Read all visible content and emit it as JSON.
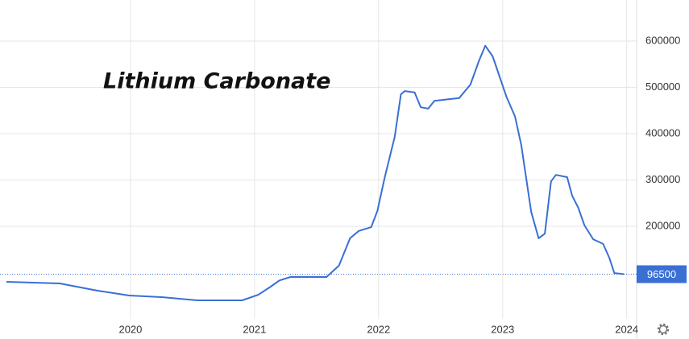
{
  "chart_data": {
    "type": "line",
    "title": "Lithium Carbonate",
    "x": [
      2019.0,
      2019.43,
      2019.73,
      2019.99,
      2020.25,
      2020.54,
      2020.9,
      2021.03,
      2021.13,
      2021.2,
      2021.29,
      2021.58,
      2021.68,
      2021.77,
      2021.84,
      2021.94,
      2021.99,
      2022.05,
      2022.13,
      2022.18,
      2022.21,
      2022.29,
      2022.34,
      2022.4,
      2022.45,
      2022.52,
      2022.65,
      2022.74,
      2022.81,
      2022.86,
      2022.92,
      2023.03,
      2023.1,
      2023.15,
      2023.23,
      2023.29,
      2023.34,
      2023.39,
      2023.43,
      2023.52,
      2023.56,
      2023.61,
      2023.66,
      2023.73,
      2023.81,
      2023.86,
      2023.9,
      2023.98
    ],
    "values": [
      80000,
      76500,
      61000,
      50400,
      47000,
      40000,
      40000,
      52000,
      69600,
      83000,
      90400,
      90400,
      115000,
      174000,
      190000,
      198000,
      233000,
      306000,
      393000,
      485000,
      492000,
      489000,
      457000,
      454000,
      471000,
      473000,
      477000,
      506000,
      558000,
      590000,
      567000,
      480000,
      437000,
      376000,
      231000,
      174000,
      184000,
      297000,
      311000,
      306000,
      266000,
      240000,
      202000,
      172000,
      162000,
      132000,
      99000,
      96500
    ],
    "color": "#3a6fd4",
    "xlim": [
      2019.0,
      2024.08
    ],
    "xticks": [
      2020,
      2021,
      2022,
      2023,
      2024
    ],
    "ylim": [
      0,
      680000
    ],
    "yticks": [
      200000,
      300000,
      400000,
      500000,
      600000
    ],
    "grid": true
  }
}
